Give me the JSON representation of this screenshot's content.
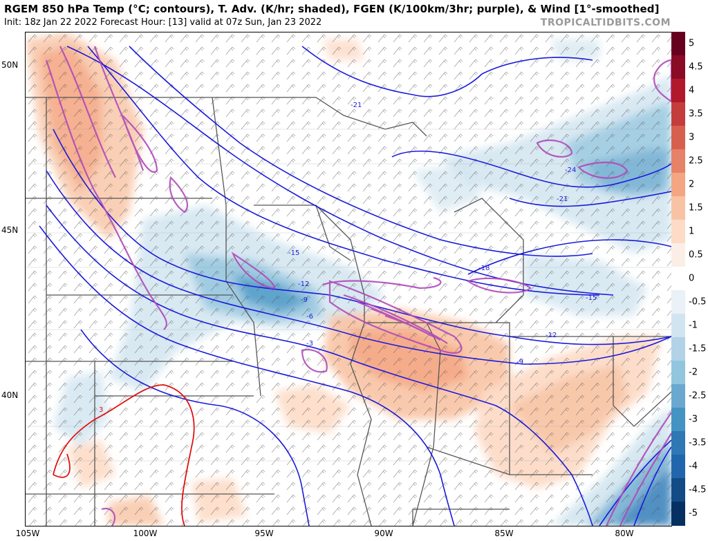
{
  "title": "RGEM 850 hPa Temp (°C; contours), T. Adv. (K/hr; shaded), FGEN (K/100km/3hr; purple), & Wind [1°-smoothed]",
  "subtitle": "Init: 18z Jan 22 2022   Forecast Hour: [13]   valid at 07z Sun, Jan 23 2022",
  "credit": "TROPICALTIDBITS.COM",
  "lat_labels": [
    "50N",
    "45N",
    "40N"
  ],
  "lon_labels": [
    "105W",
    "100W",
    "95W",
    "90W",
    "85W",
    "80W"
  ],
  "contour_labels": [
    "-21",
    "-24",
    "-21",
    "-15",
    "-18",
    "-15",
    "-12",
    "-9",
    "-6",
    "-3",
    "-12",
    "-9",
    "3"
  ],
  "colorbar": {
    "labels": [
      "5",
      "4.5",
      "4",
      "3.5",
      "3",
      "2.5",
      "2",
      "1.5",
      "1",
      "0.5",
      "0",
      "-0.5",
      "-1",
      "-1.5",
      "-2",
      "-2.5",
      "-3",
      "-3.5",
      "-4",
      "-4.5",
      "-5"
    ],
    "colors": [
      "#67001f",
      "#8a0b25",
      "#b2182b",
      "#c43c3c",
      "#d6604d",
      "#e58267",
      "#f4a582",
      "#f8c3a4",
      "#fddbc7",
      "#fbeee6",
      "#ffffff",
      "#eaf1f7",
      "#d1e5f0",
      "#b2d2e7",
      "#92c5de",
      "#6aa8cf",
      "#4393c3",
      "#2f77b5",
      "#2166ac",
      "#124b85",
      "#053061"
    ]
  },
  "colors": {
    "cold_contour": "#1a1adb",
    "warm_contour": "#e01010",
    "fgen": "#b04ab8",
    "borders": "#555555"
  }
}
